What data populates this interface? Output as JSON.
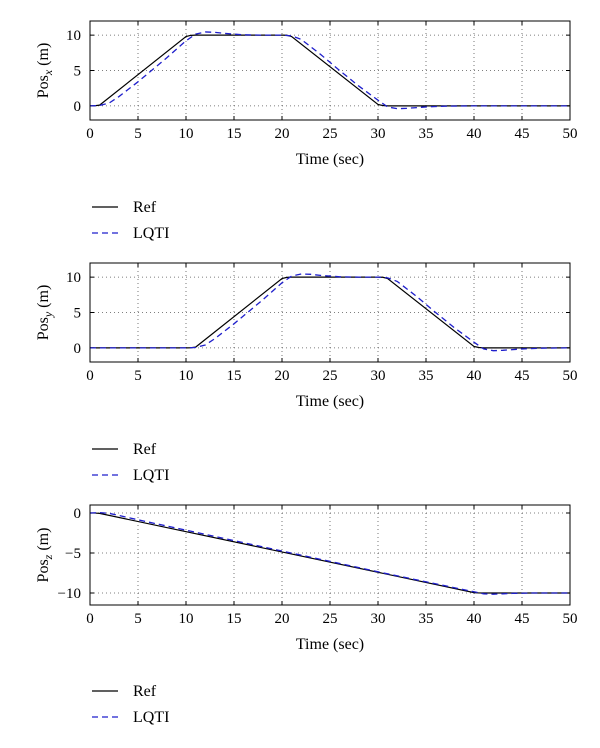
{
  "chart_data": [
    {
      "type": "line",
      "xlabel": "Time (sec)",
      "ylabel": "Pos",
      "ylabel_sub": "x",
      "ylabel_unit": "(m)",
      "xlim": [
        0,
        50
      ],
      "ylim": [
        -2,
        12
      ],
      "xticks": [
        0,
        5,
        10,
        15,
        20,
        25,
        30,
        35,
        40,
        45,
        50
      ],
      "yticks": [
        0,
        5,
        10
      ],
      "grid": true,
      "legend": "below",
      "series": [
        {
          "name": "Ref",
          "style": "solid",
          "color": "#000000",
          "x": [
            0,
            0.5,
            1,
            10,
            10.5,
            11,
            20,
            20.5,
            21,
            30,
            30.5,
            31,
            50
          ],
          "y": [
            0,
            0.02,
            0.1,
            9.8,
            9.97,
            10,
            10,
            9.98,
            9.8,
            0.2,
            0.05,
            0,
            0
          ]
        },
        {
          "name": "LQTI",
          "style": "dashed",
          "color": "#1f1fcc",
          "x": [
            0,
            1,
            2,
            3,
            5,
            8,
            10,
            11,
            12,
            13,
            14,
            16,
            18,
            20,
            21,
            22,
            24,
            26,
            28,
            30,
            31,
            32,
            33,
            35,
            37,
            40,
            50
          ],
          "y": [
            0,
            0.05,
            0.4,
            1.3,
            3.4,
            6.8,
            9.2,
            10.15,
            10.45,
            10.4,
            10.25,
            10.05,
            10.0,
            10.0,
            9.9,
            9.4,
            7.3,
            5.0,
            2.8,
            0.8,
            -0.15,
            -0.4,
            -0.35,
            -0.15,
            -0.05,
            0,
            0
          ]
        }
      ]
    },
    {
      "type": "line",
      "xlabel": "Time (sec)",
      "ylabel": "Pos",
      "ylabel_sub": "y",
      "ylabel_unit": "(m)",
      "xlim": [
        0,
        50
      ],
      "ylim": [
        -2,
        12
      ],
      "xticks": [
        0,
        5,
        10,
        15,
        20,
        25,
        30,
        35,
        40,
        45,
        50
      ],
      "yticks": [
        0,
        5,
        10
      ],
      "grid": true,
      "legend": "below",
      "series": [
        {
          "name": "Ref",
          "style": "solid",
          "color": "#000000",
          "x": [
            0,
            10,
            10.5,
            11,
            20,
            20.5,
            21,
            30,
            30.5,
            31,
            40,
            40.5,
            41,
            50
          ],
          "y": [
            0,
            0,
            0.02,
            0.1,
            9.8,
            9.97,
            10,
            10,
            9.98,
            9.8,
            0.2,
            0.05,
            0,
            0
          ]
        },
        {
          "name": "LQTI",
          "style": "dashed",
          "color": "#1f1fcc",
          "x": [
            0,
            10,
            11,
            12,
            13,
            15,
            18,
            20,
            21,
            22,
            23,
            24,
            26,
            28,
            30,
            31,
            32,
            34,
            36,
            38,
            40,
            41,
            42,
            43,
            45,
            47,
            50
          ],
          "y": [
            0,
            0,
            0.05,
            0.4,
            1.3,
            3.4,
            6.8,
            9.2,
            10.15,
            10.45,
            10.4,
            10.25,
            10.05,
            10.0,
            10.0,
            9.9,
            9.4,
            7.3,
            5.0,
            2.8,
            0.8,
            -0.15,
            -0.4,
            -0.35,
            -0.15,
            -0.05,
            0
          ]
        }
      ]
    },
    {
      "type": "line",
      "xlabel": "Time (sec)",
      "ylabel": "Pos",
      "ylabel_sub": "z",
      "ylabel_unit": "(m)",
      "xlim": [
        0,
        50
      ],
      "ylim": [
        -11.5,
        1
      ],
      "xticks": [
        0,
        5,
        10,
        15,
        20,
        25,
        30,
        35,
        40,
        45,
        50
      ],
      "yticks": [
        0,
        -5,
        -10
      ],
      "grid": true,
      "legend": "below",
      "series": [
        {
          "name": "Ref",
          "style": "solid",
          "color": "#000000",
          "x": [
            0,
            0.5,
            1,
            40,
            40.5,
            41,
            50
          ],
          "y": [
            0,
            -0.01,
            -0.05,
            -9.95,
            -9.99,
            -10,
            -10
          ]
        },
        {
          "name": "LQTI",
          "style": "dashed",
          "color": "#1f1fcc",
          "x": [
            0,
            1,
            2,
            3,
            5,
            10,
            20,
            30,
            40,
            41,
            42,
            43,
            44,
            46,
            50
          ],
          "y": [
            0,
            0.05,
            -0.05,
            -0.3,
            -0.85,
            -2.15,
            -4.75,
            -7.35,
            -9.85,
            -10.1,
            -10.15,
            -10.1,
            -10.05,
            -10.0,
            -10.0
          ]
        }
      ]
    }
  ]
}
